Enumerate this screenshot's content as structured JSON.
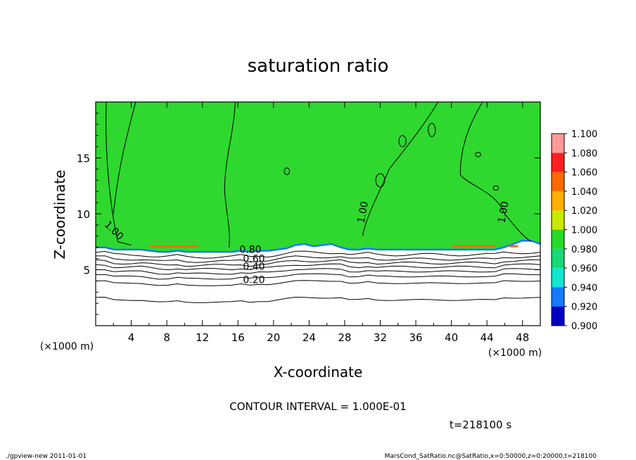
{
  "chart_data": {
    "type": "heatmap",
    "title": "saturation ratio",
    "xlabel": "X-coordinate",
    "ylabel": "Z-coordinate",
    "x_unit": "(×1000 m)",
    "y_unit": "(×1000 m)",
    "xlim": [
      0,
      50
    ],
    "ylim": [
      0,
      20
    ],
    "x_ticks": [
      4,
      8,
      12,
      16,
      20,
      24,
      28,
      32,
      36,
      40,
      44,
      48
    ],
    "y_ticks": [
      5,
      10,
      15
    ],
    "colorbar": {
      "levels": [
        "1.100",
        "1.080",
        "1.060",
        "1.040",
        "1.020",
        "1.000",
        "0.980",
        "0.960",
        "0.940",
        "0.920",
        "0.900"
      ],
      "colors": [
        "#ff9a9a",
        "#ff2020",
        "#ff6a00",
        "#ffb000",
        "#c8e800",
        "#28d828",
        "#18d878",
        "#10e8d0",
        "#1878ff",
        "#0000c0",
        "#7a00b8"
      ]
    },
    "field_description": {
      "above_surface_value": 1.0,
      "above_surface_color": "#2ed82e",
      "below_surface": "white (values below 0.900)"
    },
    "surface_height_km": [
      7.0,
      7.0,
      6.8,
      6.8,
      6.8,
      6.8,
      6.7,
      6.6,
      6.6,
      6.7,
      6.6,
      6.6,
      6.6,
      6.6,
      6.6,
      6.6,
      6.7,
      6.6,
      6.7,
      6.7,
      6.8,
      6.9,
      7.2,
      7.3,
      7.1,
      7.2,
      7.3,
      7.0,
      6.8,
      6.8,
      6.9,
      6.8,
      6.8,
      6.8,
      6.8,
      6.8,
      6.8,
      6.8,
      6.8,
      6.8,
      6.8,
      6.8,
      6.8,
      6.8,
      6.8,
      7.0,
      7.3,
      7.6,
      7.6,
      7.3
    ],
    "contour_labels": [
      {
        "text": "1.00",
        "x": 1.8,
        "y": 8.3
      },
      {
        "text": "1.00",
        "x": 30.4,
        "y": 10.1
      },
      {
        "text": "1.00",
        "x": 46.2,
        "y": 10.1
      },
      {
        "text": "0.80",
        "x": 17.4,
        "y": 6.5
      },
      {
        "text": "0.60",
        "x": 17.8,
        "y": 5.7
      },
      {
        "text": "0.40",
        "x": 17.8,
        "y": 5.0
      },
      {
        "text": "0.20",
        "x": 17.8,
        "y": 3.8
      }
    ],
    "contour_interval_text": "CONTOUR INTERVAL = 1.000E-01",
    "time_text": "t=218100 s"
  },
  "footer": {
    "left": "./gpview-new   2011-01-01",
    "right": "MarsCond_SatRatio.nc@SatRatio,x=0:50000,z=0:20000,t=218100"
  }
}
